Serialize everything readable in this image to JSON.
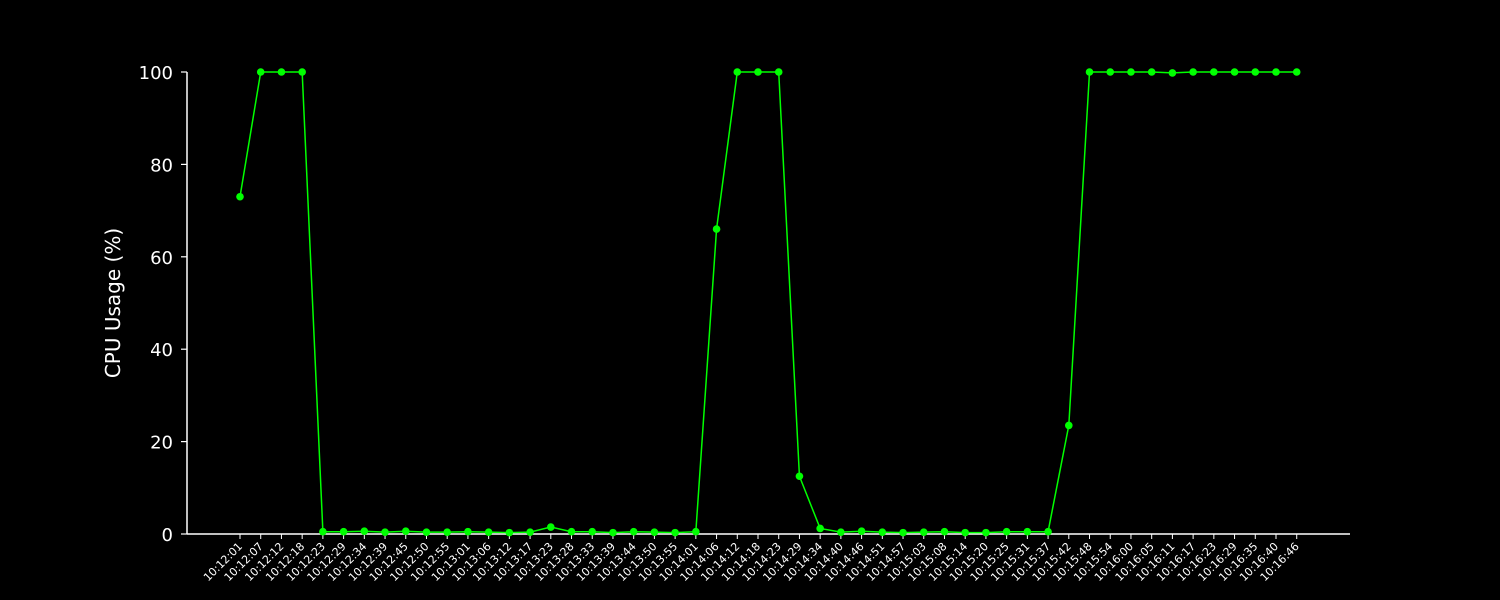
{
  "chart_data": {
    "type": "line",
    "title": "",
    "xlabel": "",
    "ylabel": "CPU Usage (%)",
    "ylim": [
      0,
      100
    ],
    "yticks": [
      0,
      20,
      40,
      60,
      80,
      100
    ],
    "grid": false,
    "legend": "none",
    "colors": {
      "background": "#000000",
      "axis": "#ffffff",
      "text": "#ffffff",
      "series": "#00ff00"
    },
    "x": [
      "10:12:01",
      "10:12:07",
      "10:12:12",
      "10:12:18",
      "10:12:23",
      "10:12:29",
      "10:12:34",
      "10:12:39",
      "10:12:45",
      "10:12:50",
      "10:12:55",
      "10:13:01",
      "10:13:06",
      "10:13:12",
      "10:13:17",
      "10:13:23",
      "10:13:28",
      "10:13:33",
      "10:13:39",
      "10:13:44",
      "10:13:50",
      "10:13:55",
      "10:14:01",
      "10:14:06",
      "10:14:12",
      "10:14:18",
      "10:14:23",
      "10:14:29",
      "10:14:34",
      "10:14:40",
      "10:14:46",
      "10:14:51",
      "10:14:57",
      "10:15:03",
      "10:15:08",
      "10:15:14",
      "10:15:20",
      "10:15:25",
      "10:15:31",
      "10:15:37",
      "10:15:42",
      "10:15:48",
      "10:15:54",
      "10:16:00",
      "10:16:05",
      "10:16:11",
      "10:16:17",
      "10:16:23",
      "10:16:29",
      "10:16:35",
      "10:16:40",
      "10:16:46"
    ],
    "series": [
      {
        "values": [
          73,
          100,
          100,
          100,
          0.5,
          0.5,
          0.6,
          0.4,
          0.6,
          0.4,
          0.4,
          0.5,
          0.4,
          0.3,
          0.4,
          1.5,
          0.5,
          0.5,
          0.3,
          0.5,
          0.4,
          0.3,
          0.5,
          66,
          100,
          100,
          100,
          12.5,
          1.2,
          0.4,
          0.6,
          0.4,
          0.3,
          0.4,
          0.5,
          0.3,
          0.3,
          0.5,
          0.5,
          0.5,
          23.5,
          100,
          100,
          100,
          100,
          99.8,
          100,
          100,
          100,
          100,
          100,
          100
        ]
      }
    ]
  }
}
